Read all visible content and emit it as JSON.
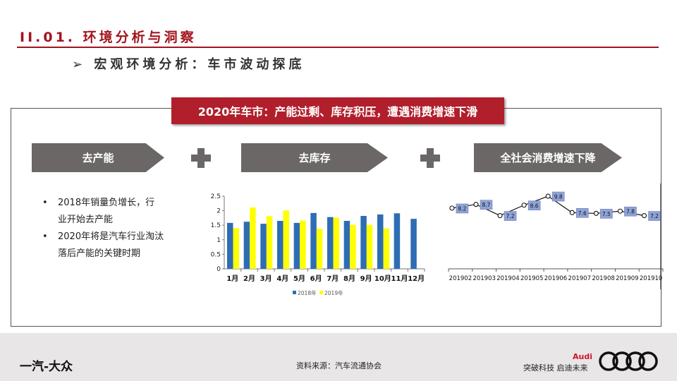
{
  "header": {
    "title": "II.01. 环境分析与洞察",
    "subtitle": "➢ 宏观环境分析：车市波动探底"
  },
  "banner": "2020年车市：产能过剩、库存积压，遭遇消费增速下滑",
  "arrows": [
    "去产能",
    "去库存",
    "全社会消费增速下降"
  ],
  "bullets": [
    "2018年销量负增长，行业开始去产能",
    "2020年将是汽车行业淘汰落后产能的关键时期"
  ],
  "footer": {
    "brand": "一汽-大众",
    "source": "资料来源：汽车流通协会",
    "audi": "Audi",
    "slogan": "突破科技 启迪未来"
  },
  "colors": {
    "accent": "#a3141e",
    "series2018": "#2e6db3",
    "series2019": "#ffff00",
    "label_box": "#8fa3d6"
  },
  "chart_data": [
    {
      "type": "bar",
      "categories": [
        "1月",
        "2月",
        "3月",
        "4月",
        "5月",
        "6月",
        "7月",
        "8月",
        "9月",
        "10月",
        "11月",
        "12月"
      ],
      "series": [
        {
          "name": "2018年",
          "values": [
            1.58,
            1.62,
            1.55,
            1.65,
            1.58,
            1.92,
            1.78,
            1.65,
            1.82,
            1.87,
            1.91,
            1.72
          ]
        },
        {
          "name": "2019年",
          "values": [
            1.4,
            2.11,
            1.81,
            2.01,
            1.66,
            1.38,
            1.76,
            1.51,
            1.51,
            1.39,
            null,
            null
          ]
        }
      ],
      "yticks": [
        "0",
        "0.5",
        "1",
        "1.5",
        "2",
        "2.5"
      ],
      "ylim": [
        0,
        2.5
      ],
      "legend": "bottom"
    },
    {
      "type": "line",
      "categories": [
        "201902",
        "201903",
        "201904",
        "201905",
        "201906",
        "201907",
        "201908",
        "201909",
        "201910"
      ],
      "values": [
        8.2,
        8.7,
        7.2,
        8.6,
        9.8,
        7.6,
        7.5,
        7.8,
        7.2
      ],
      "labels": [
        "8.2",
        "8.7",
        "7.2",
        "8.6",
        "9.8",
        "7.6",
        "7.5",
        "7.8",
        "7.2"
      ]
    }
  ]
}
